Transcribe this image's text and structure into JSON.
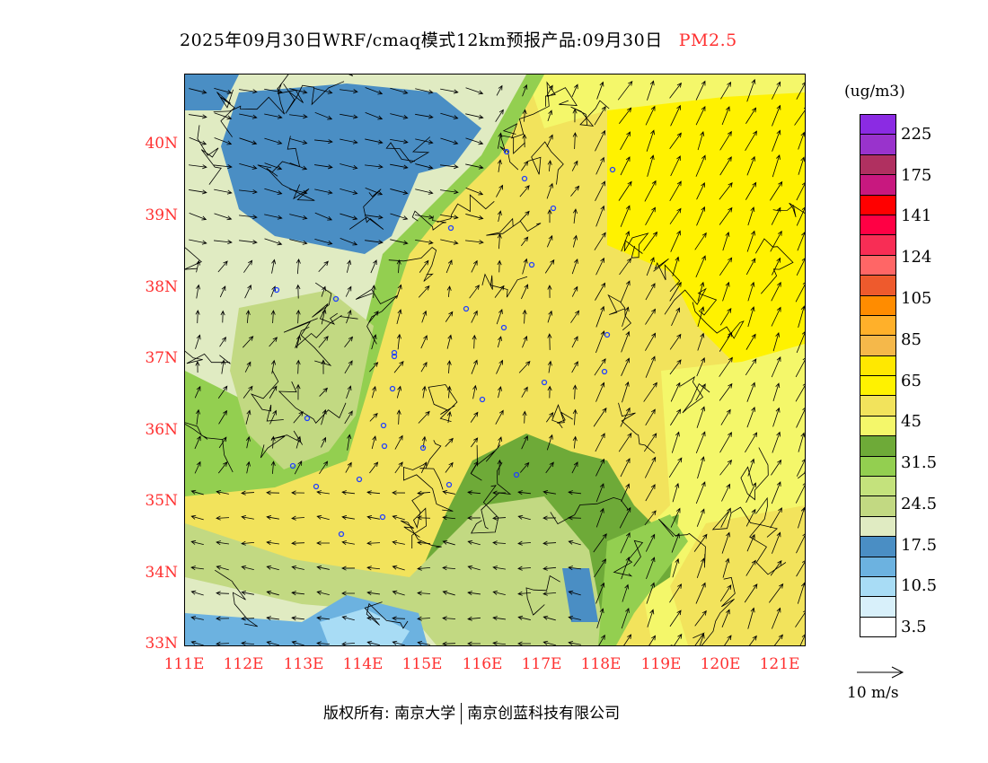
{
  "title": {
    "main": "2025年09月30日WRF/cmaq模式12km预报产品:09月30日",
    "variable": "PM2.5"
  },
  "map": {
    "lat_labels": [
      "40N",
      "39N",
      "38N",
      "37N",
      "36N",
      "35N",
      "34N",
      "33N"
    ],
    "lon_labels": [
      "111E",
      "112E",
      "113E",
      "114E",
      "115E",
      "116E",
      "117E",
      "118E",
      "119E",
      "120E",
      "121E"
    ]
  },
  "legend": {
    "unit": "(ug/m3)",
    "colors": [
      "#8b2be3",
      "#9933cc",
      "#b03060",
      "#c8187f",
      "#ff0000",
      "#ff0044",
      "#f82d55",
      "#ff6666",
      "#ee5a2d",
      "#ff8c00",
      "#ffb02a",
      "#f5b84a",
      "#ffe800",
      "#fff200",
      "#f2e35c",
      "#f4f76a",
      "#6eaa38",
      "#93cf50",
      "#c4e27c",
      "#c2d982",
      "#e0ebc2",
      "#4a8ec4",
      "#6cb2e0",
      "#a8dcf5",
      "#d8f0fa",
      "#ffffff"
    ],
    "labels": [
      "225",
      "175",
      "141",
      "124",
      "105",
      "85",
      "65",
      "45",
      "31.5",
      "24.5",
      "17.5",
      "10.5",
      "3.5"
    ]
  },
  "wind_reference": "10 m/s",
  "footer": {
    "copyright": "版权所有: 南京大学",
    "company": "南京创蓝科技有限公司"
  }
}
